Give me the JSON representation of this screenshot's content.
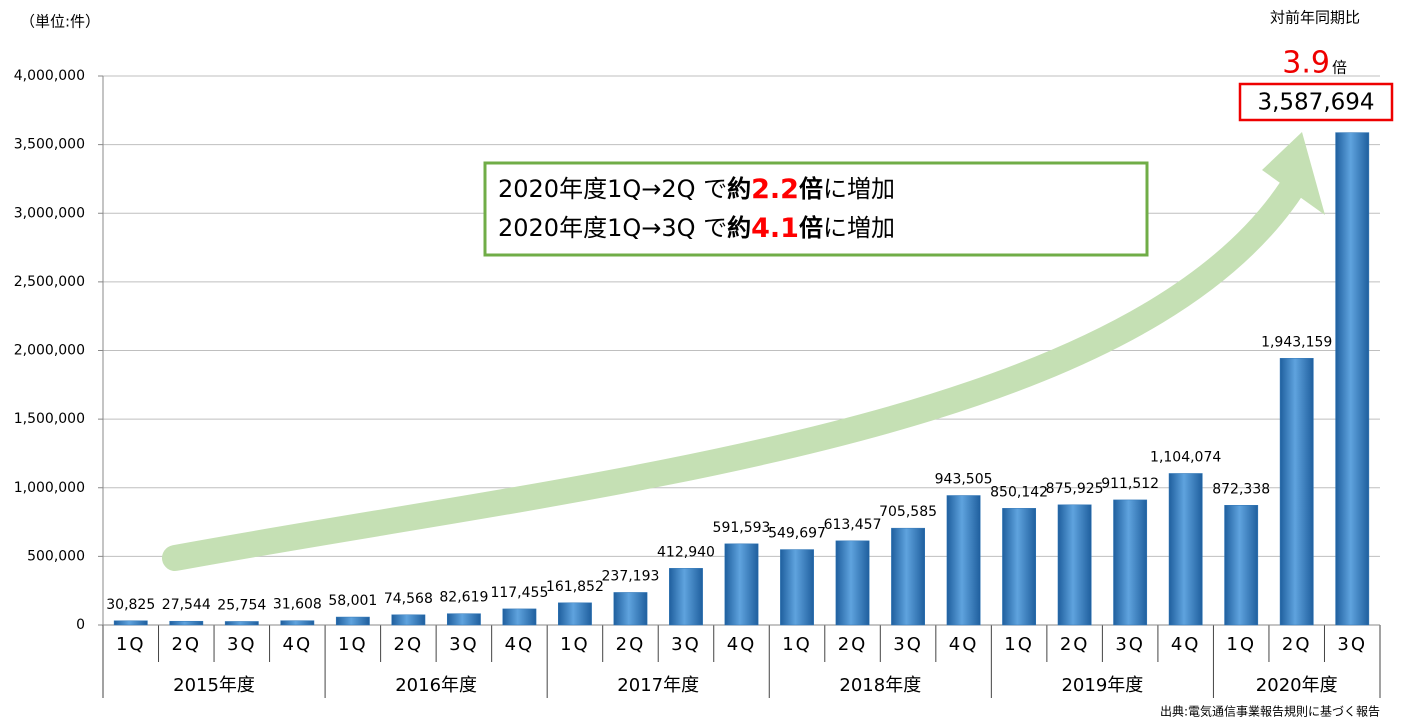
{
  "unit_note": "（単位:件）",
  "chart_data": {
    "type": "bar",
    "category_groups": [
      {
        "name": "2015年度",
        "categories": [
          "1Q",
          "2Q",
          "3Q",
          "4Q"
        ]
      },
      {
        "name": "2016年度",
        "categories": [
          "1Q",
          "2Q",
          "3Q",
          "4Q"
        ]
      },
      {
        "name": "2017年度",
        "categories": [
          "1Q",
          "2Q",
          "3Q",
          "4Q"
        ]
      },
      {
        "name": "2018年度",
        "categories": [
          "1Q",
          "2Q",
          "3Q",
          "4Q"
        ]
      },
      {
        "name": "2019年度",
        "categories": [
          "1Q",
          "2Q",
          "3Q",
          "4Q"
        ]
      },
      {
        "name": "2020年度",
        "categories": [
          "1Q",
          "2Q",
          "3Q"
        ]
      }
    ],
    "values": [
      30825,
      27544,
      25754,
      31608,
      58001,
      74568,
      82619,
      117455,
      161852,
      237193,
      412940,
      591593,
      549697,
      613457,
      705585,
      943505,
      850142,
      875925,
      911512,
      1104074,
      872338,
      1943159,
      3587694
    ],
    "value_labels": [
      "30,825",
      "27,544",
      "25,754",
      "31,608",
      "58,001",
      "74,568",
      "82,619",
      "117,455",
      "161,852",
      "237,193",
      "412,940",
      "591,593",
      "549,697",
      "613,457",
      "705,585",
      "943,505",
      "850,142",
      "875,925",
      "911,512",
      "1,104,074",
      "872,338",
      "1,943,159",
      "3,587,694"
    ],
    "color": "#2e75b6",
    "ylim": [
      0,
      4000000
    ],
    "yticks": [
      0,
      {
        "value": 500000,
        "label": "500,000"
      },
      {
        "value": 1000000,
        "label": "1,000,000"
      },
      {
        "value": 1500000,
        "label": "1,500,000"
      },
      {
        "value": 2000000,
        "label": "2,000,000"
      },
      {
        "value": 2500000,
        "label": "2,500,000"
      },
      {
        "value": 3000000,
        "label": "3,000,000"
      },
      {
        "value": 3500000,
        "label": "3,500,000"
      },
      {
        "value": 4000000,
        "label": "4,000,000"
      }
    ],
    "grid": true,
    "callout": {
      "lines": [
        {
          "prefix": "2020年度1Q→2Q で",
          "about": "約",
          "ratio": 2.2,
          "times": "倍",
          "suffix": "に増加"
        },
        {
          "prefix": "2020年度1Q→3Q で",
          "about": "約",
          "ratio": 4.1,
          "times": "倍",
          "suffix": "に増加"
        }
      ]
    },
    "yoy": {
      "label": "対前年同期比",
      "value": 3.9,
      "unit": "倍"
    }
  },
  "source": "出典:電気通信事業報告規則に基づく報告"
}
